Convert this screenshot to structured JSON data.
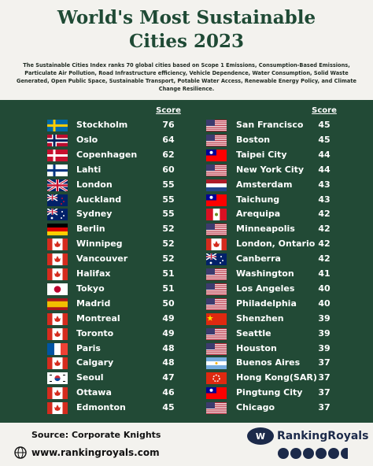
{
  "header": {
    "title": "World's Most Sustainable Cities 2023",
    "description": "The Sustainable Cities Index ranks 70 global cities based on Scope 1 Emissions, Consumption-Based Emissions, Particulate Air Pollution, Road Infrastructure efficiency, Vehicle Dependence, Water Consumption, Solid Waste Generated, Open Public Space, Sustainable Transport, Potable Water Access, Renewable Energy Policy, and Climate Change Resilience."
  },
  "table": {
    "left": {
      "header": "Score",
      "rows": [
        {
          "city": "Stockholm",
          "score": 76
        },
        {
          "city": "Oslo",
          "score": 64
        },
        {
          "city": "Copenhagen",
          "score": 62
        },
        {
          "city": "Lahti",
          "score": 60
        },
        {
          "city": "London",
          "score": 55
        },
        {
          "city": "Auckland",
          "score": 55
        },
        {
          "city": "Sydney",
          "score": 55
        },
        {
          "city": "Berlin",
          "score": 52
        },
        {
          "city": "Winnipeg",
          "score": 52
        },
        {
          "city": "Vancouver",
          "score": 52
        },
        {
          "city": "Halifax",
          "score": 51
        },
        {
          "city": "Tokyo",
          "score": 51
        },
        {
          "city": "Madrid",
          "score": 50
        },
        {
          "city": "Montreal",
          "score": 49
        },
        {
          "city": "Toronto",
          "score": 49
        },
        {
          "city": "Paris",
          "score": 48
        },
        {
          "city": "Calgary",
          "score": 48
        },
        {
          "city": "Seoul",
          "score": 47
        },
        {
          "city": "Ottawa",
          "score": 46
        },
        {
          "city": "Edmonton",
          "score": 45
        }
      ]
    },
    "right": {
      "header": "Score",
      "rows": [
        {
          "city": "San Francisco",
          "score": 45
        },
        {
          "city": "Boston",
          "score": 45
        },
        {
          "city": "Taipei City",
          "score": 44
        },
        {
          "city": "New York City",
          "score": 44
        },
        {
          "city": "Amsterdam",
          "score": 43
        },
        {
          "city": "Taichung",
          "score": 43
        },
        {
          "city": "Arequipa",
          "score": 42
        },
        {
          "city": "Minneapolis",
          "score": 42
        },
        {
          "city": "London, Ontario",
          "score": 42
        },
        {
          "city": "Canberra",
          "score": 42
        },
        {
          "city": "Washington",
          "score": 41
        },
        {
          "city": "Los Angeles",
          "score": 40
        },
        {
          "city": "Philadelphia",
          "score": 40
        },
        {
          "city": "Shenzhen",
          "score": 39
        },
        {
          "city": "Seattle",
          "score": 39
        },
        {
          "city": "Houston",
          "score": 39
        },
        {
          "city": "Buenos Aires",
          "score": 37
        },
        {
          "city": "Hong Kong(SAR)",
          "score": 37
        },
        {
          "city": "Pingtung City",
          "score": 37
        },
        {
          "city": "Chicago",
          "score": 37
        }
      ]
    }
  },
  "footer": {
    "source": "Source: Corporate Knights",
    "website": "www.rankingroyals.com",
    "brand": "RankingRoyals"
  }
}
